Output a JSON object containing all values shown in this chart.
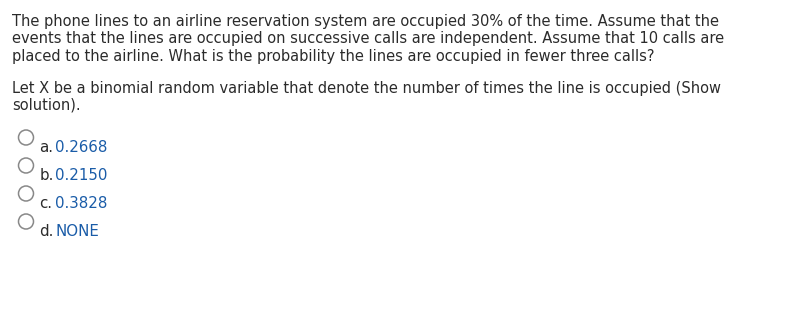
{
  "background_color": "#ffffff",
  "paragraph1_lines": [
    "The phone lines to an airline reservation system are occupied 30% of the time. Assume that the",
    "events that the lines are occupied on successive calls are independent. Assume that 10 calls are",
    "placed to the airline. What is the probability the lines are occupied in fewer three calls?"
  ],
  "paragraph2_lines": [
    "Let X be a binomial random variable that denote the number of times the line is occupied (Show",
    "solution)."
  ],
  "options": [
    {
      "label": "a.",
      "value": "0.2668"
    },
    {
      "label": "b.",
      "value": "0.2150"
    },
    {
      "label": "c.",
      "value": "0.3828"
    },
    {
      "label": "d.",
      "value": "NONE"
    }
  ],
  "text_color": "#2b2b2b",
  "option_label_color": "#2b2b2b",
  "option_value_color": "#1a5ca8",
  "font_size_body": 10.5,
  "font_size_options": 10.8,
  "fig_width": 7.93,
  "fig_height": 3.25,
  "dpi": 100
}
